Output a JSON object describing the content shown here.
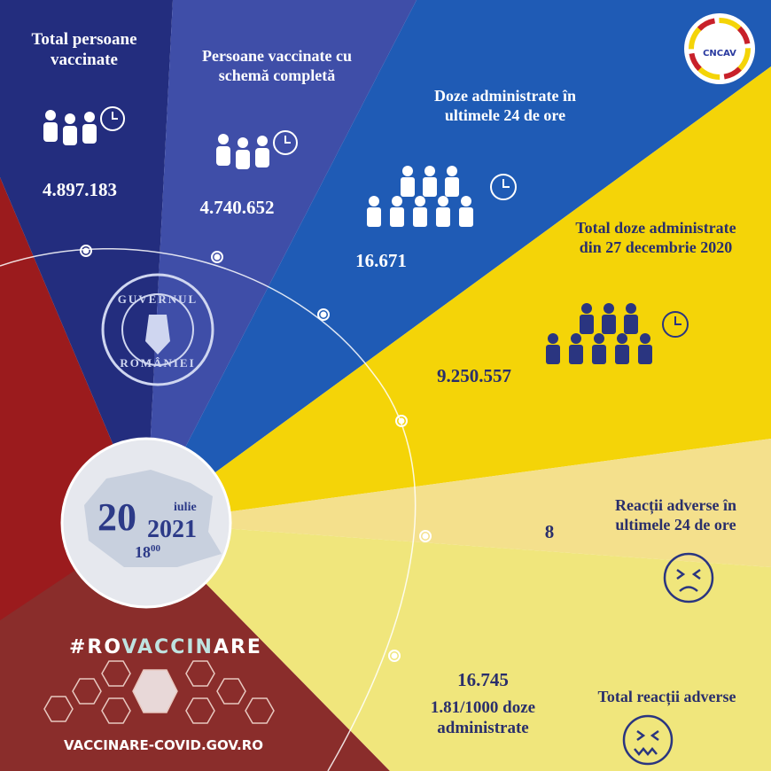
{
  "colors": {
    "navy": "#232d7e",
    "purple_blue": "#3f4ea8",
    "blue": "#1f5bb5",
    "yellow": "#f4d408",
    "light_yellow": "#f4e08c",
    "pale_yellow": "#f0e67c",
    "red": "#9b1b1d",
    "dark_red": "#8a2d2b",
    "text_dark": "#2a2f6b"
  },
  "logo": {
    "text": "CNCAV"
  },
  "seal": {
    "text_top": "GUVERNUL",
    "text_bottom": "ROMÂNIEI"
  },
  "stats": [
    {
      "label": "Total persoane vaccinate",
      "value": "4.897.183",
      "icon": "people-clock-icon"
    },
    {
      "label": "Persoane vaccinate cu schemă completă",
      "value": "4.740.652",
      "icon": "people-clock-icon"
    },
    {
      "label": "Doze administrate în ultimele 24 de ore",
      "value": "16.671",
      "icon": "crowd-clock-icon"
    },
    {
      "label": "Total doze administrate din 27 decembrie 2020",
      "value": "9.250.557",
      "icon": "crowd-clock-icon"
    },
    {
      "label": "Reacții adverse în ultimele 24 de ore",
      "value": "8",
      "icon": "sad-face-icon"
    },
    {
      "label": "Total reacții adverse",
      "value": "16.745",
      "sub": "1.81/1000 doze administrate",
      "icon": "dizzy-face-icon"
    }
  ],
  "date": {
    "day": "20",
    "month": "iulie",
    "year": "2021",
    "hour": "18",
    "minutes": "00"
  },
  "hashtag": {
    "part1": "#RO",
    "part2": "VACCIN",
    "part3": "ARE"
  },
  "website": "VACCINARE-COVID.GOV.RO"
}
